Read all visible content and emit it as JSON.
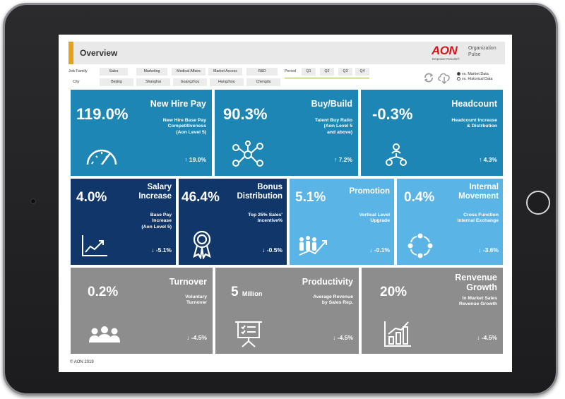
{
  "header": {
    "title": "Overview"
  },
  "brand": {
    "name": "AON",
    "tagline": "Empower Results®",
    "product_line1": "Organization",
    "product_line2": "Pulse"
  },
  "filters": {
    "job_family_label": "Job Family",
    "job_families": [
      "Sales",
      "Marketing",
      "Medical Affairs",
      "Market Access",
      "R&D"
    ],
    "city_label": "City",
    "cities": [
      "Beijing",
      "Shanghai",
      "Guangzhou",
      "Hangzhou",
      "Chengdu"
    ],
    "period_label": "Period",
    "periods": [
      "Q1",
      "Q2",
      "Q3",
      "Q4"
    ]
  },
  "compare": {
    "option1": "vs. Market Data",
    "option2": "vs. Historical Data",
    "selected": "option1"
  },
  "tiles": {
    "new_hire_pay": {
      "value": "119.0%",
      "title": "New Hire Pay",
      "desc": "New Hire Base Pay\nCompetitiveness\n(Aon Level 5)",
      "change": "↑ 19.0%",
      "icon": "speedometer-icon"
    },
    "buy_build": {
      "value": "90.3%",
      "title": "Buy/Build",
      "desc": "Talent Buy Ratio\n(Aon Level 5\nand above)",
      "change": "↑ 7.2%",
      "icon": "network-icon"
    },
    "headcount": {
      "value": "-0.3%",
      "title": "Headcount",
      "desc": "Headcount Increase\n& Distrbution",
      "change": "↑ 4.3%",
      "icon": "org-chart-icon"
    },
    "salary_increase": {
      "value": "4.0%",
      "title": "Salary\nIncrease",
      "desc": "Base Pay\nIncrease\n(Aon Level 5)",
      "change": "↓ -5.1%",
      "icon": "trend-chart-icon"
    },
    "bonus_distribution": {
      "value": "46.4%",
      "title": "Bonus\nDistribution",
      "desc": "Top 25% Sales'\nIncentive%",
      "change": "↓ -0.5%",
      "icon": "award-ribbon-icon"
    },
    "promotion": {
      "value": "5.1%",
      "title": "Promotion",
      "desc": "Vertical Level\nUpgrade",
      "change": "↓ -0.1%",
      "icon": "growth-team-icon"
    },
    "internal_movement": {
      "value": "0.4%",
      "title": "Internal\nMovement",
      "desc": "Cross Function\nInternal Exchange",
      "change": "↓ -3.6%",
      "icon": "cycle-arrows-icon"
    },
    "turnover": {
      "value": "0.2%",
      "title": "Turnover",
      "desc": "Voluntary\nTurnover",
      "change": "↓ -4.5%",
      "icon": "people-group-icon"
    },
    "productivity": {
      "value": "5",
      "unit": "Million",
      "title": "Productivity",
      "desc": "Average Revenue\nby Sales Rep.",
      "change": "↓ -4.5%",
      "icon": "presentation-board-icon"
    },
    "revenue_growth": {
      "value": "20%",
      "title": "Renvenue\nGrowth",
      "desc": "In Market Sales\nRevenue Growth",
      "change": "↓ -4.5%",
      "icon": "bar-growth-icon"
    }
  },
  "colors": {
    "teal": "#1d86b4",
    "navy": "#11376a",
    "light_blue": "#5bb4e6",
    "gray": "#8d8d8d",
    "accent": "#e6a11a",
    "brand_red": "#d8141b"
  },
  "footer": {
    "copyright": "© AON 2019"
  }
}
